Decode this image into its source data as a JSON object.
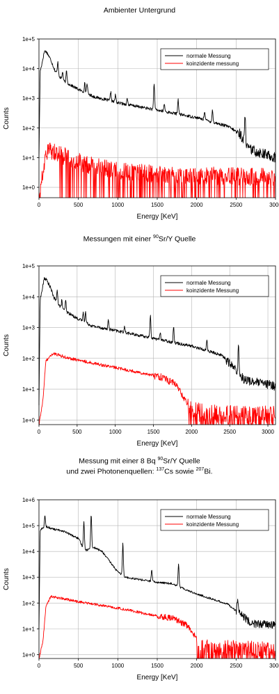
{
  "titles": {
    "chart1": "Ambienter Untergrund",
    "chart2_prefix": "Messungen mit einer ",
    "chart2_sup": "90",
    "chart2_suffix": "Sr/Y Quelle",
    "chart3_l1_prefix": "Messung mit einer 8 Bq ",
    "chart3_l1_sup": "90",
    "chart3_l1_suffix": "Sr/Y Quelle",
    "chart3_l2_prefix": "und zwei Photonenquellen: ",
    "chart3_l2_sup1": "137",
    "chart3_l2_mid": "Cs sowie ",
    "chart3_l2_sup2": "207",
    "chart3_l2_suffix": "Bi."
  },
  "colors": {
    "normal": "#000000",
    "coincident": "#ff0000",
    "grid": "#b4b4b4"
  },
  "chart_data": [
    {
      "type": "line",
      "title": "Ambienter Untergrund",
      "xlabel": "Energy [KeV]",
      "ylabel": "Counts",
      "xlim": [
        0,
        3000
      ],
      "xticks": [
        0,
        500,
        1000,
        1500,
        2000,
        2500,
        3000
      ],
      "ylog": true,
      "yticks": [
        "1e+0",
        "1e+1",
        "1e+2",
        "1e+3",
        "1e+4",
        "1e+5"
      ],
      "ylim_exp": [
        -0.35,
        5
      ],
      "grid": true,
      "legend": "top-right",
      "series": [
        {
          "name": "normale Messung",
          "color": "#000000",
          "envelope": [
            [
              0,
              1
            ],
            [
              15,
              3.9
            ],
            [
              40,
              4.2
            ],
            [
              70,
              4.6
            ],
            [
              100,
              4.55
            ],
            [
              150,
              4.3
            ],
            [
              200,
              3.95
            ],
            [
              300,
              3.6
            ],
            [
              400,
              3.45
            ],
            [
              500,
              3.3
            ],
            [
              700,
              3.05
            ],
            [
              1000,
              2.85
            ],
            [
              1300,
              2.7
            ],
            [
              1500,
              2.6
            ],
            [
              1800,
              2.45
            ],
            [
              2000,
              2.35
            ],
            [
              2200,
              2.2
            ],
            [
              2400,
              2.05
            ],
            [
              2550,
              1.8
            ],
            [
              2650,
              1.3
            ],
            [
              3000,
              1.0
            ]
          ],
          "noise": [
            0.05,
            0.18
          ],
          "noise_start": 2500,
          "peaks": [
            [
              240,
              0.4
            ],
            [
              300,
              0.3
            ],
            [
              350,
              0.4
            ],
            [
              580,
              0.3
            ],
            [
              610,
              0.35
            ],
            [
              910,
              0.3
            ],
            [
              970,
              0.25
            ],
            [
              1120,
              0.2
            ],
            [
              1460,
              0.9
            ],
            [
              1590,
              0.25
            ],
            [
              1765,
              0.5
            ],
            [
              2100,
              0.3
            ],
            [
              2200,
              0.4
            ],
            [
              2615,
              1.05
            ]
          ]
        },
        {
          "name": "koinzidente messung",
          "color": "#ff0000",
          "envelope": [
            [
              0,
              -0.35
            ],
            [
              60,
              0.6
            ],
            [
              90,
              1.15
            ],
            [
              150,
              1.25
            ],
            [
              200,
              1.2
            ],
            [
              400,
              0.95
            ],
            [
              700,
              0.7
            ],
            [
              1000,
              0.55
            ],
            [
              1500,
              0.45
            ],
            [
              2000,
              0.4
            ],
            [
              3000,
              0.35
            ]
          ],
          "noise": [
            0.3,
            0.45
          ],
          "dropout": 0.22,
          "dropout_start": 250
        }
      ]
    },
    {
      "type": "line",
      "title": "Messungen mit einer 90Sr/Y Quelle",
      "xlabel": "Energy [KeV]",
      "ylabel": "Counts",
      "xlim": [
        0,
        3100
      ],
      "xticks": [
        0,
        500,
        1000,
        1500,
        2000,
        2500,
        3000
      ],
      "ylog": true,
      "yticks": [
        "1e+0",
        "1e+1",
        "1e+2",
        "1e+3",
        "1e+4",
        "1e+5"
      ],
      "ylim_exp": [
        -0.15,
        5
      ],
      "grid": true,
      "legend": "top-right",
      "series": [
        {
          "name": "normale Messung",
          "color": "#000000",
          "envelope": [
            [
              0,
              0.5
            ],
            [
              15,
              3.9
            ],
            [
              40,
              4.2
            ],
            [
              70,
              4.6
            ],
            [
              100,
              4.55
            ],
            [
              150,
              4.3
            ],
            [
              200,
              3.95
            ],
            [
              300,
              3.6
            ],
            [
              400,
              3.45
            ],
            [
              500,
              3.3
            ],
            [
              700,
              3.05
            ],
            [
              1000,
              2.9
            ],
            [
              1300,
              2.75
            ],
            [
              1500,
              2.65
            ],
            [
              1800,
              2.5
            ],
            [
              2000,
              2.4
            ],
            [
              2200,
              2.25
            ],
            [
              2400,
              2.1
            ],
            [
              2550,
              1.7
            ],
            [
              2700,
              1.3
            ],
            [
              3100,
              1.1
            ]
          ],
          "noise": [
            0.05,
            0.15
          ],
          "noise_start": 2450,
          "peaks": [
            [
              240,
              0.4
            ],
            [
              300,
              0.3
            ],
            [
              350,
              0.35
            ],
            [
              580,
              0.3
            ],
            [
              610,
              0.35
            ],
            [
              910,
              0.3
            ],
            [
              1120,
              0.2
            ],
            [
              1460,
              0.7
            ],
            [
              1590,
              0.25
            ],
            [
              1765,
              0.5
            ],
            [
              2200,
              0.35
            ],
            [
              2615,
              0.9
            ]
          ]
        },
        {
          "name": "koinzidente Messung",
          "color": "#ff0000",
          "envelope": [
            [
              0,
              -0.15
            ],
            [
              50,
              0.6
            ],
            [
              90,
              1.9
            ],
            [
              150,
              2.1
            ],
            [
              200,
              2.15
            ],
            [
              400,
              2.0
            ],
            [
              700,
              1.85
            ],
            [
              1000,
              1.7
            ],
            [
              1300,
              1.55
            ],
            [
              1600,
              1.4
            ],
            [
              1800,
              1.15
            ],
            [
              1900,
              0.7
            ],
            [
              2000,
              0.3
            ],
            [
              2200,
              0.2
            ],
            [
              3100,
              0.15
            ]
          ],
          "noise": [
            0.05,
            0.12,
            0.3
          ],
          "noise_breaks": [
            1500,
            1950
          ],
          "dropout": 0.3,
          "dropout_start": 1950
        }
      ]
    },
    {
      "type": "line",
      "title": "Messung mit einer 8 Bq 90Sr/Y Quelle und zwei Photonenquellen: 137Cs sowie 207Bi.",
      "xlabel": "Energy [KeV]",
      "ylabel": "Counts",
      "xlim": [
        0,
        3000
      ],
      "xticks": [
        0,
        500,
        1000,
        1500,
        2000,
        2500,
        3000
      ],
      "ylog": true,
      "yticks": [
        "1e+0",
        "1e+1",
        "1e+2",
        "1e+3",
        "1e+4",
        "1e+5",
        "1e+6"
      ],
      "ylim_exp": [
        -0.15,
        6
      ],
      "grid": true,
      "legend": "top-right",
      "series": [
        {
          "name": "normale Messung",
          "color": "#000000",
          "envelope": [
            [
              0,
              1
            ],
            [
              15,
              4.8
            ],
            [
              40,
              4.9
            ],
            [
              100,
              4.95
            ],
            [
              200,
              4.85
            ],
            [
              300,
              4.8
            ],
            [
              400,
              4.65
            ],
            [
              500,
              4.5
            ],
            [
              550,
              4.2
            ],
            [
              600,
              4.05
            ],
            [
              700,
              4.15
            ],
            [
              800,
              4.0
            ],
            [
              900,
              3.6
            ],
            [
              1000,
              3.2
            ],
            [
              1100,
              3.0
            ],
            [
              1300,
              2.9
            ],
            [
              1500,
              2.8
            ],
            [
              1700,
              2.75
            ],
            [
              1800,
              2.6
            ],
            [
              2000,
              2.35
            ],
            [
              2200,
              2.15
            ],
            [
              2400,
              1.95
            ],
            [
              2500,
              1.7
            ],
            [
              2700,
              1.2
            ],
            [
              3000,
              1.15
            ]
          ],
          "noise": [
            0.04,
            0.15
          ],
          "noise_start": 2500,
          "peaks": [
            [
              75,
              0.45
            ],
            [
              570,
              1.0
            ],
            [
              662,
              1.35
            ],
            [
              1064,
              1.25
            ],
            [
              1430,
              0.45
            ],
            [
              1770,
              0.85
            ],
            [
              2520,
              0.55
            ]
          ]
        },
        {
          "name": "koinzidente Messung",
          "color": "#ff0000",
          "envelope": [
            [
              0,
              -0.15
            ],
            [
              50,
              0.5
            ],
            [
              90,
              1.9
            ],
            [
              150,
              2.25
            ],
            [
              250,
              2.2
            ],
            [
              500,
              2.05
            ],
            [
              800,
              1.9
            ],
            [
              1100,
              1.75
            ],
            [
              1400,
              1.55
            ],
            [
              1700,
              1.4
            ],
            [
              1900,
              1.1
            ],
            [
              2000,
              0.6
            ],
            [
              2100,
              0.3
            ],
            [
              3000,
              0.2
            ]
          ],
          "noise": [
            0.05,
            0.12,
            0.3
          ],
          "noise_breaks": [
            1500,
            2000
          ],
          "dropout": 0.3,
          "dropout_start": 2000
        }
      ]
    }
  ]
}
